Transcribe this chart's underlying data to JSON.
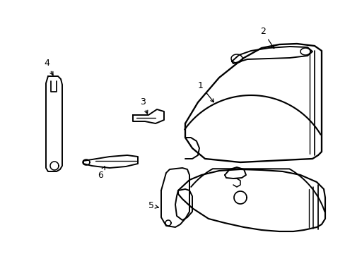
{
  "background_color": "#ffffff",
  "line_color": "#000000",
  "line_width": 1.4,
  "figsize": [
    4.89,
    3.6
  ],
  "dpi": 100
}
